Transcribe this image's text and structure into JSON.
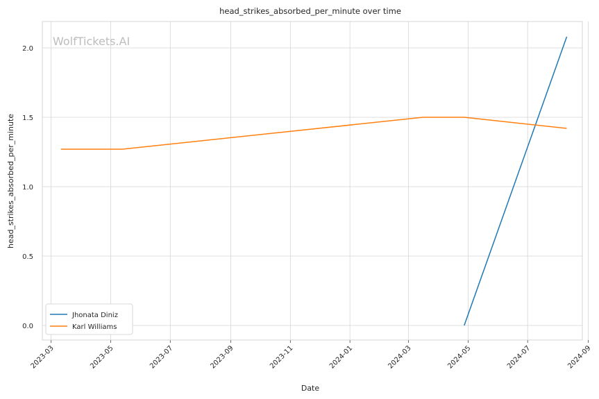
{
  "chart_data": {
    "type": "line",
    "title": "head_strikes_absorbed_per_minute over time",
    "xlabel": "Date",
    "ylabel": "head_strikes_absorbed_per_minute",
    "watermark": "WolfTickets.AI",
    "x_ticks": [
      "2023-03",
      "2023-05",
      "2023-07",
      "2023-09",
      "2023-11",
      "2024-01",
      "2024-03",
      "2024-05",
      "2024-07",
      "2024-09"
    ],
    "y_ticks": [
      "0.0",
      "0.5",
      "1.0",
      "1.5",
      "2.0"
    ],
    "xlim": [
      "2023-02-20",
      "2024-08-26"
    ],
    "ylim": [
      -0.105,
      2.19
    ],
    "grid": true,
    "legend_position": "lower-left",
    "series": [
      {
        "name": "Jhonata Diniz",
        "color": "#1f77b4",
        "x": [
          "2024-04-27",
          "2024-08-10"
        ],
        "y": [
          0.0,
          2.08
        ]
      },
      {
        "name": "Karl Williams",
        "color": "#ff7f0e",
        "x": [
          "2023-03-11",
          "2023-05-13",
          "2024-03-16",
          "2024-04-27",
          "2024-08-10"
        ],
        "y": [
          1.27,
          1.27,
          1.5,
          1.5,
          1.42
        ]
      }
    ]
  }
}
